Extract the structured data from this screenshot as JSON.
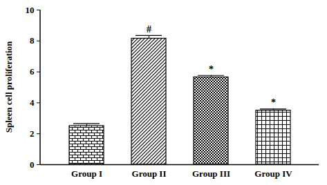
{
  "chart_data": {
    "type": "bar",
    "y_label": "Spleen cell proliferation",
    "categories": [
      "Group I",
      "Group II",
      "Group III",
      "Group IV"
    ],
    "values": [
      2.5,
      8.15,
      5.65,
      3.5
    ],
    "errors": [
      0.15,
      0.2,
      0.12,
      0.1
    ],
    "annotations": [
      null,
      "#",
      "*",
      "*"
    ],
    "color": "#000000",
    "ylim": [
      0,
      10
    ],
    "yticks": [
      0,
      2,
      4,
      6,
      8,
      10
    ],
    "grid": false
  }
}
